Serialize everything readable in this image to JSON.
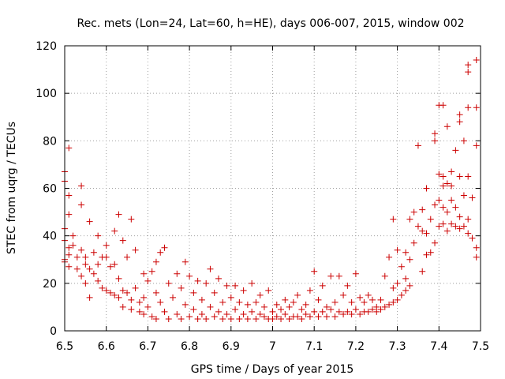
{
  "chart_data": {
    "type": "scatter",
    "title": "Rec. mets (Lon=24, Lat=60, h=HE), days 006-007, 2015, window 002",
    "xlabel": "GPS time / Days of year 2015",
    "ylabel": "STEC from uqrg / TECUs",
    "xlim": [
      6.5,
      7.5
    ],
    "ylim": [
      0,
      120
    ],
    "xticks": [
      "6.5",
      "6.6",
      "6.7",
      "6.8",
      "6.9",
      "7",
      "7.1",
      "7.2",
      "7.3",
      "7.4",
      "7.5"
    ],
    "yticks": [
      "0",
      "20",
      "40",
      "60",
      "80",
      "100",
      "120"
    ],
    "grid": true,
    "marker": "+",
    "color": "#cc0000",
    "series": [
      {
        "points": [
          [
            6.5,
            67
          ],
          [
            6.5,
            63
          ],
          [
            6.5,
            43
          ],
          [
            6.5,
            38
          ],
          [
            6.5,
            30
          ],
          [
            6.5,
            29
          ],
          [
            6.51,
            77
          ],
          [
            6.51,
            57
          ],
          [
            6.51,
            49
          ],
          [
            6.51,
            35
          ],
          [
            6.51,
            32
          ],
          [
            6.51,
            27
          ],
          [
            6.52,
            40
          ],
          [
            6.52,
            36
          ],
          [
            6.53,
            31
          ],
          [
            6.53,
            26
          ],
          [
            6.54,
            61
          ],
          [
            6.54,
            53
          ],
          [
            6.54,
            34
          ],
          [
            6.54,
            23
          ],
          [
            6.55,
            31
          ],
          [
            6.55,
            28
          ],
          [
            6.55,
            20
          ],
          [
            6.56,
            46
          ],
          [
            6.56,
            26
          ],
          [
            6.56,
            14
          ],
          [
            6.57,
            33
          ],
          [
            6.57,
            24
          ],
          [
            6.58,
            40
          ],
          [
            6.58,
            28
          ],
          [
            6.58,
            21
          ],
          [
            6.59,
            31
          ],
          [
            6.59,
            18
          ],
          [
            6.6,
            36
          ],
          [
            6.6,
            31
          ],
          [
            6.6,
            17
          ],
          [
            6.61,
            27
          ],
          [
            6.61,
            16
          ],
          [
            6.62,
            42
          ],
          [
            6.62,
            28
          ],
          [
            6.62,
            15
          ],
          [
            6.63,
            49
          ],
          [
            6.63,
            22
          ],
          [
            6.63,
            14
          ],
          [
            6.64,
            38
          ],
          [
            6.64,
            17
          ],
          [
            6.64,
            10
          ],
          [
            6.65,
            31
          ],
          [
            6.65,
            16
          ],
          [
            6.66,
            47
          ],
          [
            6.66,
            13
          ],
          [
            6.66,
            9
          ],
          [
            6.67,
            34
          ],
          [
            6.67,
            18
          ],
          [
            6.68,
            12
          ],
          [
            6.68,
            8
          ],
          [
            6.69,
            24
          ],
          [
            6.69,
            14
          ],
          [
            6.69,
            7
          ],
          [
            6.7,
            21
          ],
          [
            6.7,
            10
          ],
          [
            6.71,
            25
          ],
          [
            6.71,
            6
          ],
          [
            6.72,
            29
          ],
          [
            6.72,
            16
          ],
          [
            6.72,
            5
          ],
          [
            6.73,
            33
          ],
          [
            6.73,
            12
          ],
          [
            6.74,
            35
          ],
          [
            6.74,
            8
          ],
          [
            6.75,
            20
          ],
          [
            6.75,
            5
          ],
          [
            6.76,
            14
          ],
          [
            6.77,
            24
          ],
          [
            6.77,
            7
          ],
          [
            6.78,
            18
          ],
          [
            6.78,
            5
          ],
          [
            6.79,
            29
          ],
          [
            6.79,
            11
          ],
          [
            6.8,
            23
          ],
          [
            6.8,
            6
          ],
          [
            6.81,
            16
          ],
          [
            6.81,
            9
          ],
          [
            6.82,
            21
          ],
          [
            6.82,
            5
          ],
          [
            6.83,
            13
          ],
          [
            6.83,
            7
          ],
          [
            6.84,
            20
          ],
          [
            6.84,
            5
          ],
          [
            6.85,
            26
          ],
          [
            6.85,
            10
          ],
          [
            6.86,
            16
          ],
          [
            6.86,
            6
          ],
          [
            6.87,
            22
          ],
          [
            6.87,
            8
          ],
          [
            6.88,
            12
          ],
          [
            6.88,
            5
          ],
          [
            6.89,
            19
          ],
          [
            6.89,
            7
          ],
          [
            6.9,
            14
          ],
          [
            6.9,
            5
          ],
          [
            6.91,
            19
          ],
          [
            6.91,
            9
          ],
          [
            6.92,
            12
          ],
          [
            6.92,
            5
          ],
          [
            6.93,
            17
          ],
          [
            6.93,
            7
          ],
          [
            6.94,
            11
          ],
          [
            6.94,
            5
          ],
          [
            6.95,
            20
          ],
          [
            6.95,
            8
          ],
          [
            6.96,
            12
          ],
          [
            6.96,
            5
          ],
          [
            6.97,
            15
          ],
          [
            6.97,
            7
          ],
          [
            6.98,
            10
          ],
          [
            6.98,
            6
          ],
          [
            6.99,
            17
          ],
          [
            6.99,
            5
          ],
          [
            7.0,
            8
          ],
          [
            7.0,
            5
          ],
          [
            7.01,
            11
          ],
          [
            7.01,
            6
          ],
          [
            7.02,
            9
          ],
          [
            7.02,
            5
          ],
          [
            7.03,
            13
          ],
          [
            7.03,
            7
          ],
          [
            7.04,
            10
          ],
          [
            7.04,
            5
          ],
          [
            7.05,
            12
          ],
          [
            7.05,
            6
          ],
          [
            7.06,
            15
          ],
          [
            7.06,
            6
          ],
          [
            7.07,
            9
          ],
          [
            7.07,
            5
          ],
          [
            7.08,
            11
          ],
          [
            7.08,
            7
          ],
          [
            7.09,
            17
          ],
          [
            7.09,
            6
          ],
          [
            7.1,
            25
          ],
          [
            7.1,
            8
          ],
          [
            7.11,
            13
          ],
          [
            7.11,
            6
          ],
          [
            7.12,
            19
          ],
          [
            7.12,
            8
          ],
          [
            7.13,
            10
          ],
          [
            7.13,
            6
          ],
          [
            7.14,
            23
          ],
          [
            7.14,
            9
          ],
          [
            7.15,
            12
          ],
          [
            7.15,
            6
          ],
          [
            7.16,
            23
          ],
          [
            7.16,
            8
          ],
          [
            7.17,
            15
          ],
          [
            7.17,
            7
          ],
          [
            7.18,
            19
          ],
          [
            7.18,
            8
          ],
          [
            7.19,
            12
          ],
          [
            7.19,
            7
          ],
          [
            7.2,
            24
          ],
          [
            7.2,
            9
          ],
          [
            7.21,
            14
          ],
          [
            7.21,
            7
          ],
          [
            7.22,
            12
          ],
          [
            7.22,
            8
          ],
          [
            7.23,
            15
          ],
          [
            7.23,
            8
          ],
          [
            7.24,
            13
          ],
          [
            7.24,
            9
          ],
          [
            7.25,
            10
          ],
          [
            7.25,
            8
          ],
          [
            7.26,
            13
          ],
          [
            7.26,
            9
          ],
          [
            7.27,
            23
          ],
          [
            7.27,
            10
          ],
          [
            7.28,
            31
          ],
          [
            7.28,
            11
          ],
          [
            7.29,
            47
          ],
          [
            7.29,
            18
          ],
          [
            7.29,
            12
          ],
          [
            7.3,
            34
          ],
          [
            7.3,
            20
          ],
          [
            7.3,
            13
          ],
          [
            7.31,
            27
          ],
          [
            7.31,
            15
          ],
          [
            7.32,
            33
          ],
          [
            7.32,
            22
          ],
          [
            7.32,
            17
          ],
          [
            7.33,
            47
          ],
          [
            7.33,
            30
          ],
          [
            7.33,
            19
          ],
          [
            7.34,
            50
          ],
          [
            7.34,
            37
          ],
          [
            7.35,
            78
          ],
          [
            7.35,
            44
          ],
          [
            7.36,
            51
          ],
          [
            7.36,
            42
          ],
          [
            7.36,
            25
          ],
          [
            7.37,
            60
          ],
          [
            7.37,
            41
          ],
          [
            7.37,
            32
          ],
          [
            7.38,
            47
          ],
          [
            7.38,
            33
          ],
          [
            7.39,
            83
          ],
          [
            7.39,
            80
          ],
          [
            7.39,
            53
          ],
          [
            7.39,
            37
          ],
          [
            7.4,
            95
          ],
          [
            7.4,
            66
          ],
          [
            7.4,
            55
          ],
          [
            7.4,
            44
          ],
          [
            7.41,
            95
          ],
          [
            7.41,
            65
          ],
          [
            7.41,
            61
          ],
          [
            7.41,
            52
          ],
          [
            7.41,
            45
          ],
          [
            7.42,
            86
          ],
          [
            7.42,
            62
          ],
          [
            7.42,
            50
          ],
          [
            7.42,
            42
          ],
          [
            7.43,
            67
          ],
          [
            7.43,
            61
          ],
          [
            7.43,
            55
          ],
          [
            7.43,
            45
          ],
          [
            7.44,
            76
          ],
          [
            7.44,
            52
          ],
          [
            7.44,
            44
          ],
          [
            7.45,
            88
          ],
          [
            7.45,
            91
          ],
          [
            7.45,
            65
          ],
          [
            7.45,
            48
          ],
          [
            7.45,
            43
          ],
          [
            7.46,
            80
          ],
          [
            7.46,
            57
          ],
          [
            7.46,
            44
          ],
          [
            7.47,
            112
          ],
          [
            7.47,
            109
          ],
          [
            7.47,
            94
          ],
          [
            7.47,
            65
          ],
          [
            7.47,
            47
          ],
          [
            7.47,
            41
          ],
          [
            7.48,
            56
          ],
          [
            7.48,
            39
          ],
          [
            7.49,
            114
          ],
          [
            7.49,
            94
          ],
          [
            7.49,
            78
          ],
          [
            7.49,
            35
          ],
          [
            7.49,
            31
          ]
        ]
      }
    ]
  }
}
